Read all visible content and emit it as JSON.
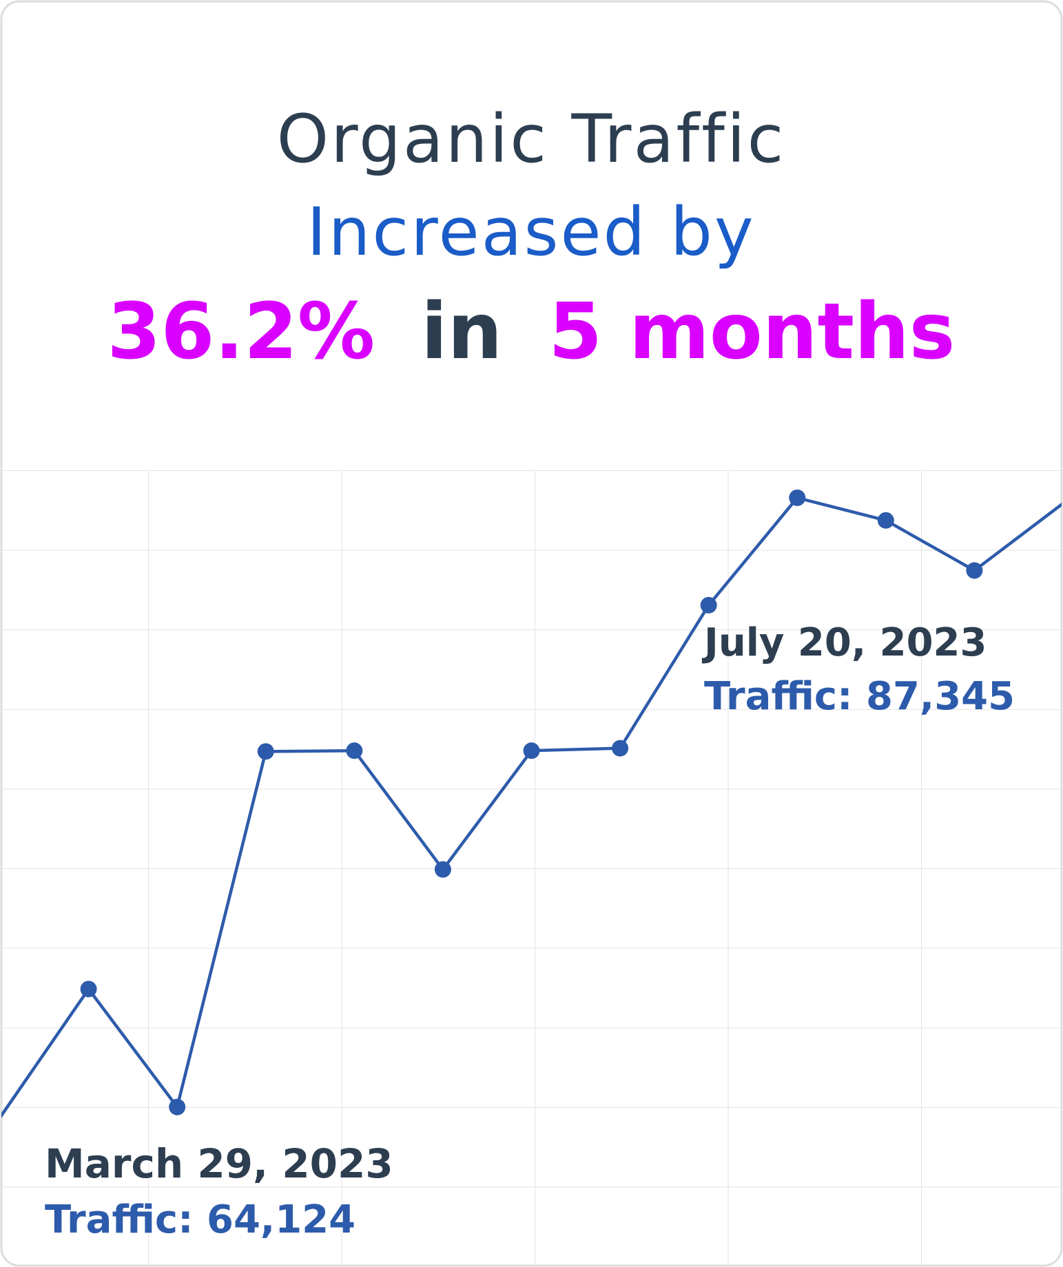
{
  "chart_data": {
    "type": "line",
    "title": "Organic Traffic",
    "subtitle": "Increased by",
    "headline": [
      "36.2%",
      "in",
      "5 months"
    ],
    "categories": [
      null,
      null,
      null,
      null,
      null,
      null,
      null,
      null,
      null,
      null,
      null,
      null,
      null
    ],
    "series": [
      {
        "name": "Traffic",
        "color": "#2d5bab",
        "values": [
          63638,
          69583,
          64124,
          80576,
          80613,
          75117,
          80613,
          80725,
          87345,
          92316,
          91269,
          88951,
          92054
        ]
      }
    ],
    "ylim": [
      56721,
      93587
    ],
    "grid": true,
    "annotations": [
      {
        "label": "March 29, 2023",
        "text": "Traffic: 64,124"
      },
      {
        "label": "July 20, 2023",
        "text": "Traffic: 87,345"
      }
    ]
  }
}
